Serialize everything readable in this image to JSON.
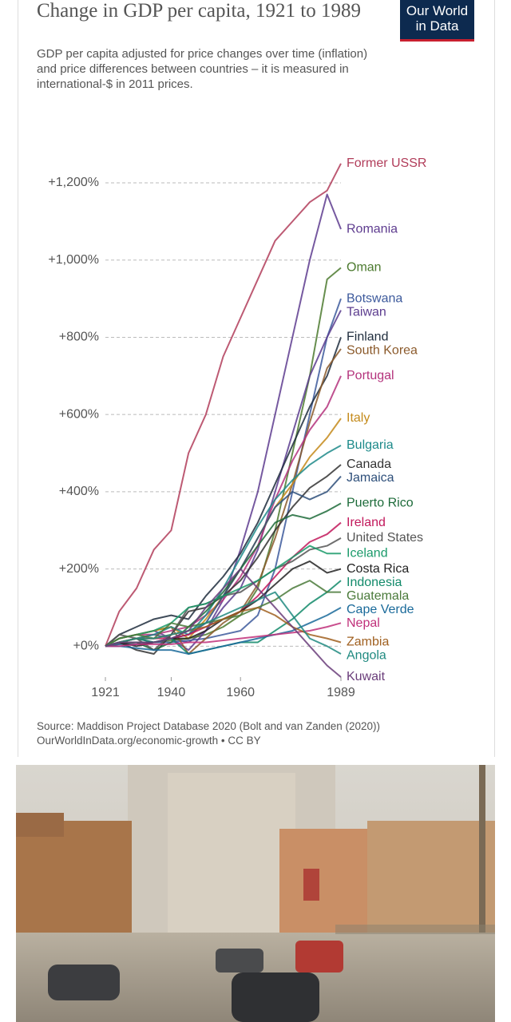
{
  "chart_data": {
    "type": "line",
    "title": "Change in GDP per capita, 1921 to 1989",
    "subtitle": "GDP per capita adjusted for price changes over time (inflation) and price differences between countries – it is measured in international-$ in 2011 prices.",
    "logo": "Our World in Data",
    "source": "Source: Maddison Project Database 2020 (Bolt and van Zanden (2020))",
    "source_link": "OurWorldInData.org/economic-growth • CC BY",
    "xlim": [
      1921,
      1989
    ],
    "xticks": [
      1921,
      1940,
      1960,
      1989
    ],
    "ylim": [
      -80,
      1260
    ],
    "yticks": [
      {
        "value": 0,
        "label": "+0%"
      },
      {
        "value": 200,
        "label": "+200%"
      },
      {
        "value": 400,
        "label": "+400%"
      },
      {
        "value": 600,
        "label": "+600%"
      },
      {
        "value": 800,
        "label": "+800%"
      },
      {
        "value": 1000,
        "label": "+1,000%"
      },
      {
        "value": 1200,
        "label": "+1,200%"
      }
    ],
    "grid": true,
    "x": [
      1921,
      1925,
      1930,
      1935,
      1940,
      1945,
      1950,
      1955,
      1960,
      1965,
      1970,
      1975,
      1980,
      1985,
      1989
    ],
    "series": [
      {
        "name": "Former USSR",
        "color": "#b13d5a",
        "values": [
          0,
          90,
          150,
          250,
          300,
          500,
          600,
          750,
          850,
          950,
          1050,
          1100,
          1150,
          1180,
          1250
        ]
      },
      {
        "name": "Romania",
        "color": "#5e3c8f",
        "values": [
          0,
          10,
          20,
          30,
          20,
          10,
          40,
          120,
          250,
          400,
          600,
          800,
          1000,
          1170,
          1080
        ]
      },
      {
        "name": "Oman",
        "color": "#4c7a2f",
        "values": [
          0,
          5,
          10,
          10,
          15,
          20,
          30,
          50,
          80,
          150,
          300,
          500,
          700,
          950,
          980
        ]
      },
      {
        "name": "Botswana",
        "color": "#3d5a9c",
        "values": [
          0,
          5,
          5,
          10,
          10,
          15,
          20,
          30,
          40,
          80,
          200,
          400,
          600,
          800,
          900
        ]
      },
      {
        "name": "Taiwan",
        "color": "#5c3d8f",
        "values": [
          0,
          20,
          30,
          40,
          20,
          -10,
          40,
          100,
          150,
          250,
          400,
          550,
          700,
          800,
          870
        ]
      },
      {
        "name": "Finland",
        "color": "#1f2d3d",
        "values": [
          0,
          30,
          50,
          70,
          80,
          70,
          130,
          180,
          240,
          320,
          420,
          520,
          620,
          700,
          800
        ]
      },
      {
        "name": "South Korea",
        "color": "#8b5a2b",
        "values": [
          0,
          20,
          30,
          40,
          50,
          -20,
          20,
          60,
          90,
          160,
          280,
          420,
          580,
          720,
          770
        ]
      },
      {
        "name": "Portugal",
        "color": "#b4337c",
        "values": [
          0,
          20,
          30,
          30,
          40,
          50,
          80,
          120,
          180,
          260,
          380,
          480,
          560,
          620,
          700
        ]
      },
      {
        "name": "Italy",
        "color": "#c48a1a",
        "values": [
          0,
          20,
          30,
          40,
          50,
          20,
          70,
          130,
          200,
          280,
          360,
          420,
          490,
          540,
          590
        ]
      },
      {
        "name": "Bulgaria",
        "color": "#1d8a8a",
        "values": [
          0,
          10,
          20,
          30,
          50,
          30,
          80,
          150,
          230,
          310,
          380,
          430,
          470,
          500,
          520
        ]
      },
      {
        "name": "Canada",
        "color": "#333333",
        "values": [
          0,
          10,
          -10,
          -20,
          30,
          90,
          100,
          130,
          170,
          230,
          300,
          360,
          410,
          440,
          470
        ]
      },
      {
        "name": "Jamaica",
        "color": "#2e4f7a",
        "values": [
          0,
          10,
          20,
          10,
          20,
          30,
          60,
          130,
          200,
          280,
          360,
          400,
          380,
          400,
          440
        ]
      },
      {
        "name": "Puerto Rico",
        "color": "#1d6b3a",
        "values": [
          0,
          10,
          10,
          -10,
          10,
          50,
          90,
          140,
          200,
          260,
          320,
          340,
          330,
          350,
          370
        ]
      },
      {
        "name": "Ireland",
        "color": "#c2185b",
        "values": [
          0,
          10,
          20,
          20,
          20,
          30,
          50,
          70,
          90,
          130,
          180,
          230,
          270,
          290,
          320
        ]
      },
      {
        "name": "United States",
        "color": "#555555",
        "values": [
          0,
          30,
          20,
          -10,
          30,
          100,
          110,
          130,
          140,
          170,
          200,
          220,
          250,
          260,
          280
        ]
      },
      {
        "name": "Iceland",
        "color": "#1a9a6a",
        "values": [
          0,
          20,
          30,
          40,
          60,
          100,
          110,
          130,
          150,
          170,
          200,
          230,
          260,
          240,
          240
        ]
      },
      {
        "name": "Costa Rica",
        "color": "#222222",
        "values": [
          0,
          10,
          0,
          10,
          20,
          20,
          40,
          70,
          90,
          120,
          160,
          200,
          220,
          190,
          200
        ]
      },
      {
        "name": "Indonesia",
        "color": "#128a6a",
        "values": [
          0,
          10,
          20,
          10,
          20,
          -20,
          -10,
          0,
          10,
          10,
          40,
          70,
          110,
          140,
          170
        ]
      },
      {
        "name": "Guatemala",
        "color": "#4a7a3a",
        "values": [
          0,
          20,
          30,
          20,
          60,
          50,
          60,
          70,
          80,
          100,
          120,
          150,
          170,
          140,
          140
        ]
      },
      {
        "name": "Cape Verde",
        "color": "#1a6a9a",
        "values": [
          0,
          0,
          -5,
          -10,
          -10,
          -20,
          -10,
          0,
          10,
          20,
          30,
          40,
          60,
          80,
          100
        ]
      },
      {
        "name": "Nepal",
        "color": "#c0307a",
        "values": [
          0,
          0,
          5,
          5,
          5,
          10,
          10,
          15,
          20,
          25,
          30,
          35,
          40,
          50,
          60
        ]
      },
      {
        "name": "Zambia",
        "color": "#a06020",
        "values": [
          0,
          10,
          20,
          20,
          30,
          40,
          50,
          70,
          90,
          100,
          80,
          50,
          30,
          20,
          10
        ]
      },
      {
        "name": "Angola",
        "color": "#208a80",
        "values": [
          0,
          10,
          20,
          20,
          30,
          40,
          60,
          80,
          100,
          120,
          140,
          80,
          20,
          0,
          -20
        ]
      },
      {
        "name": "Kuwait",
        "color": "#6a3d7a",
        "values": [
          0,
          10,
          10,
          10,
          20,
          40,
          100,
          150,
          200,
          150,
          100,
          50,
          0,
          -50,
          -80
        ]
      }
    ]
  }
}
